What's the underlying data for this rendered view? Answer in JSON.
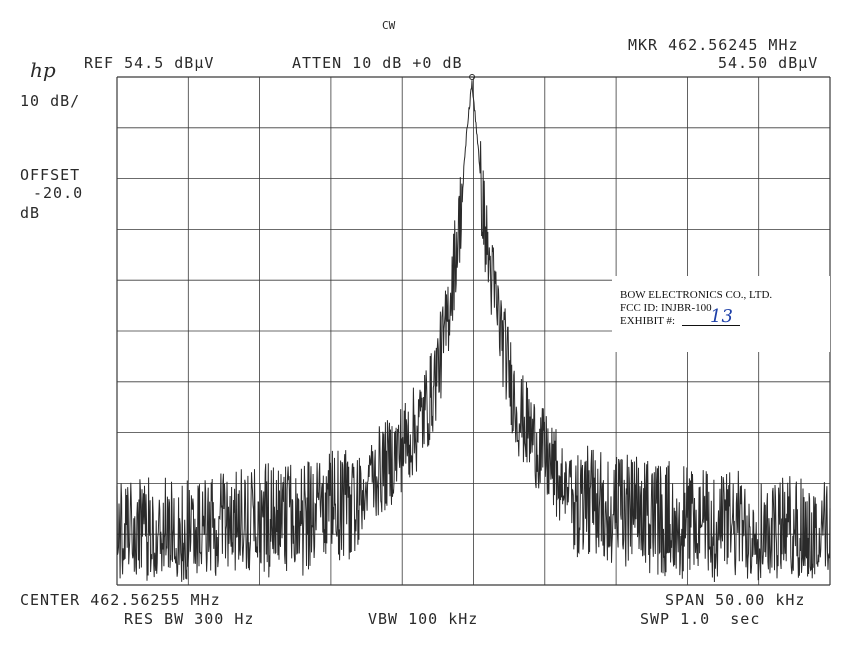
{
  "header": {
    "mode": "CW",
    "logo": "hp",
    "ref_level": "REF 54.5 dBµV",
    "attenuation": "ATTEN 10 dB +0 dB",
    "marker_freq": "MKR 462.56245 MHz",
    "marker_level": "54.50 dBµV"
  },
  "left_panel": {
    "scale": "10 dB/",
    "offset_label": "OFFSET",
    "offset_value": "-20.0",
    "offset_unit": "dB"
  },
  "footer": {
    "center": "CENTER 462.56255 MHz",
    "res_bw": "RES BW 300 Hz",
    "vbw": "VBW 100 kHz",
    "span": "SPAN 50.00 kHz",
    "sweep": "SWP 1.0  sec"
  },
  "label_box": {
    "company": "BOW ELECTRONICS CO., LTD.",
    "fcc_id": "FCC ID: INJBR-100",
    "exhibit_label": "EXHIBIT #:",
    "exhibit_number": "13"
  },
  "colors": {
    "trace": "#2a2a2a",
    "grid": "#3a3a3a",
    "exhibit_ink": "#1d3fa8"
  },
  "chart_data": {
    "type": "line",
    "title": "",
    "xlabel": "",
    "ylabel": "",
    "x_unit": "MHz",
    "y_unit": "dBµV",
    "xlim": [
      462.53755,
      462.58755
    ],
    "ylim": [
      -45.5,
      54.5
    ],
    "grid": true,
    "grid_divisions": {
      "x": 10,
      "y": 10
    },
    "marker": {
      "x": 462.56245,
      "y": 54.5
    },
    "series": [
      {
        "noise_floor_range": [
          -43,
          -24
        ],
        "x": [
          462.53755,
          462.54455,
          462.54955,
          462.55255,
          462.55455,
          462.55655,
          462.55855,
          462.55955,
          462.56055,
          462.56155,
          462.56205,
          462.56245,
          462.56285,
          462.56355,
          462.56455,
          462.56555,
          462.56655,
          462.56855,
          462.57055,
          462.57555,
          462.58055,
          462.58755
        ],
        "values": [
          -33,
          -32,
          -29,
          -27,
          -24,
          -19,
          -12,
          -6,
          6,
          28,
          44,
          54.5,
          42,
          22,
          6,
          -8,
          -13,
          -22,
          -26,
          -29,
          -31,
          -33
        ]
      }
    ]
  }
}
